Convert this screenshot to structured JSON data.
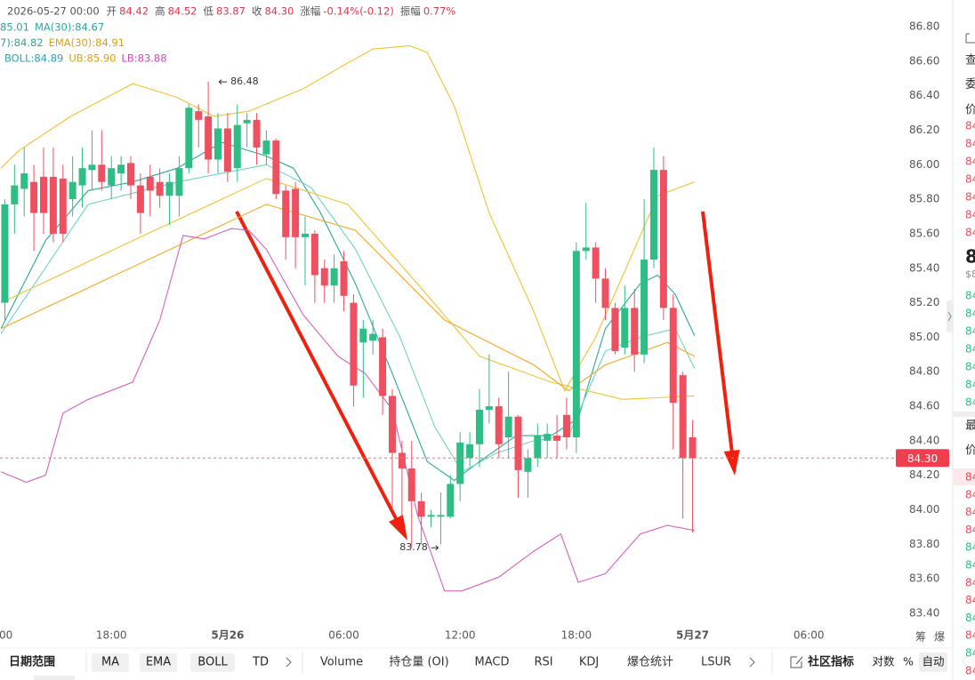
{
  "chart_data": {
    "type": "candlestick",
    "header": {
      "date": "2026-05-27 00:00",
      "items": [
        {
          "label": "开",
          "value": "84.42"
        },
        {
          "label": "高",
          "value": "84.52"
        },
        {
          "label": "低",
          "value": "83.87"
        },
        {
          "label": "收",
          "value": "84.30"
        },
        {
          "label": "涨幅",
          "value": "-0.14%(-0.12)"
        },
        {
          "label": "振幅",
          "value": "0.77%"
        }
      ]
    },
    "legend": [
      [
        {
          "text": "85.01",
          "color": "#2aa79b"
        },
        {
          "text": "MA(30):84.67",
          "color": "#2aa79b"
        }
      ],
      [
        {
          "text": "7):84.82",
          "color": "#2aa79b"
        },
        {
          "text": "EMA(30):84.91",
          "color": "#e0a000"
        }
      ],
      [
        {
          "text": "BOLL:84.89",
          "color": "#2a9fb5"
        },
        {
          "text": "UB:85.90",
          "color": "#e0a000"
        },
        {
          "text": "LB:83.88",
          "color": "#cc4bbb"
        }
      ]
    ],
    "up_color": "#2ebd85",
    "down_color": "#ef5060",
    "x": [
      0.5,
      1,
      1.5,
      2,
      2.5,
      3,
      3.5,
      4,
      4.5,
      5,
      5.5,
      6,
      6.5,
      7,
      7.5,
      8,
      8.5,
      9,
      9.5,
      10,
      10.5,
      11,
      11.5,
      12,
      12.5,
      13,
      13.5,
      14,
      14.5,
      15,
      15.5,
      16,
      16.5,
      17,
      17.5,
      18,
      18.5,
      19,
      19.5,
      20,
      20.5,
      21,
      21.5,
      22,
      22.5,
      23,
      23.5,
      24,
      24.5,
      25,
      25.5,
      26,
      26.5,
      27,
      27.5,
      28,
      28.5,
      29,
      29.5,
      30,
      30.5,
      31,
      31.5,
      32,
      32.5,
      33,
      33.5,
      34,
      34.5,
      35,
      35.5,
      36
    ],
    "open": [
      85.2,
      85.77,
      85.86,
      85.9,
      85.93,
      85.93,
      85.92,
      85.8,
      85.88,
      85.97,
      86.0,
      85.88,
      85.95,
      86.01,
      85.88,
      85.93,
      85.9,
      85.82,
      85.82,
      85.98,
      86.31,
      86.28,
      86.03,
      86.21,
      85.98,
      86.24,
      86.26,
      86.06,
      86.14,
      85.85,
      85.86,
      85.58,
      85.6,
      85.4,
      85.3,
      85.44,
      85.2,
      84.97,
      84.98,
      85.0,
      84.66,
      84.33,
      84.24,
      84.05,
      83.96,
      83.96,
      83.96,
      84.15,
      84.3,
      84.38,
      84.58,
      84.6,
      84.42,
      84.54,
      84.22,
      84.3,
      84.4,
      84.43,
      84.55,
      84.42,
      85.5,
      85.52,
      85.34,
      85.17,
      84.94,
      85.17,
      84.9,
      85.45,
      85.97,
      85.17,
      84.78,
      84.42
    ],
    "high": [
      85.8,
      86.0,
      86.1,
      86.0,
      86.1,
      86.1,
      86.0,
      86.05,
      86.1,
      86.2,
      86.2,
      86.05,
      86.05,
      86.05,
      85.95,
      86.0,
      85.98,
      85.95,
      86.05,
      86.35,
      86.35,
      86.48,
      86.3,
      86.3,
      86.35,
      86.3,
      86.3,
      86.2,
      86.15,
      85.88,
      85.9,
      85.7,
      85.62,
      85.45,
      85.48,
      85.5,
      85.25,
      85.1,
      85.1,
      85.05,
      84.7,
      84.4,
      84.4,
      84.1,
      84.0,
      84.1,
      84.2,
      84.45,
      84.45,
      84.7,
      84.9,
      84.65,
      84.8,
      84.55,
      84.35,
      84.5,
      84.5,
      84.55,
      84.65,
      85.55,
      85.78,
      85.55,
      85.4,
      85.2,
      85.3,
      85.28,
      85.8,
      86.1,
      86.05,
      85.25,
      84.8,
      84.52
    ],
    "low": [
      85.1,
      85.6,
      85.7,
      85.5,
      85.6,
      85.55,
      85.55,
      85.7,
      85.75,
      85.85,
      85.85,
      85.8,
      85.85,
      85.8,
      85.6,
      85.7,
      85.75,
      85.65,
      85.7,
      85.95,
      86.1,
      85.95,
      85.95,
      85.9,
      85.9,
      86.1,
      86.0,
      86.0,
      85.8,
      85.45,
      85.4,
      85.3,
      85.2,
      85.2,
      85.2,
      85.15,
      84.6,
      84.65,
      84.9,
      84.55,
      84.0,
      83.95,
      83.78,
      83.8,
      83.9,
      83.8,
      83.95,
      84.05,
      84.25,
      84.25,
      84.5,
      84.3,
      84.3,
      84.07,
      84.07,
      84.25,
      84.3,
      84.3,
      84.35,
      84.33,
      85.45,
      85.2,
      85.1,
      84.9,
      84.9,
      84.8,
      84.85,
      85.4,
      85.1,
      84.35,
      83.95,
      83.87
    ],
    "close": [
      85.77,
      85.88,
      85.95,
      85.72,
      85.72,
      85.6,
      85.6,
      85.9,
      85.98,
      86.0,
      85.9,
      85.98,
      86.0,
      85.88,
      85.72,
      85.85,
      85.82,
      85.9,
      85.98,
      86.33,
      86.26,
      86.03,
      86.21,
      85.96,
      86.23,
      86.26,
      86.1,
      86.14,
      85.83,
      85.58,
      85.58,
      85.6,
      85.36,
      85.3,
      85.4,
      85.24,
      84.72,
      85.05,
      85.02,
      84.66,
      84.33,
      84.24,
      84.05,
      83.96,
      83.97,
      83.97,
      84.15,
      84.39,
      84.38,
      84.58,
      84.6,
      84.38,
      84.54,
      84.23,
      84.3,
      84.43,
      84.44,
      84.4,
      84.42,
      85.5,
      85.52,
      85.34,
      85.17,
      84.92,
      85.17,
      84.9,
      85.45,
      85.97,
      85.17,
      84.62,
      84.3,
      84.3
    ],
    "series": [
      {
        "color": "#2aa79b",
        "x": [
          0.3,
          2.6,
          4.8,
          7.1,
          9.4,
          11.7,
          14.0,
          15.4,
          16.8,
          18.6,
          20.5,
          22.3,
          23.7,
          25.0,
          26.9,
          28.7,
          30.1,
          31.5,
          33.3,
          34.2,
          35.1,
          36.1
        ],
        "values": [
          85.05,
          85.56,
          85.85,
          85.9,
          85.98,
          86.13,
          86.05,
          85.98,
          85.72,
          85.31,
          84.79,
          84.28,
          84.17,
          84.28,
          84.43,
          84.43,
          84.53,
          85.05,
          85.31,
          85.36,
          85.25,
          85.01
        ]
      },
      {
        "color": "#6fd3c1",
        "x": [
          0.3,
          4.8,
          9.4,
          14.0,
          16.3,
          18.6,
          20.9,
          22.7,
          24.1,
          25.9,
          27.8,
          29.6,
          31.5,
          33.3,
          35.1,
          36.1
        ],
        "values": [
          85.02,
          85.77,
          85.9,
          86.0,
          85.87,
          85.51,
          85.0,
          84.48,
          84.22,
          84.33,
          84.4,
          84.43,
          84.92,
          85.0,
          85.05,
          84.82
        ]
      },
      {
        "color": "#f2c230",
        "x": [
          0.3,
          7.1,
          14.0,
          18.2,
          21.8,
          25.0,
          28.7,
          32.4,
          36.1
        ],
        "values": [
          85.2,
          85.56,
          85.92,
          85.77,
          85.31,
          84.89,
          84.74,
          84.64,
          84.66
        ]
      },
      {
        "color": "#f5a623",
        "x": [
          0.3,
          14.0,
          18.6,
          23.2,
          27.8,
          29.6,
          31.5,
          34.7,
          36.1
        ],
        "values": [
          85.05,
          85.77,
          85.62,
          85.1,
          84.84,
          84.69,
          84.84,
          84.97,
          84.89
        ]
      },
      {
        "color": "#f2c12e",
        "x": [
          0.3,
          1.2,
          3.9,
          7.1,
          9.4,
          11.3,
          13.1,
          15.9,
          18.2,
          19.5,
          21.4,
          22.3,
          23.7,
          25.5,
          27.8,
          29.4,
          31.0,
          32.8,
          34.2,
          36.1
        ],
        "values": [
          85.98,
          86.08,
          86.28,
          86.47,
          86.39,
          86.28,
          86.31,
          86.44,
          86.59,
          86.67,
          86.69,
          86.65,
          86.34,
          85.72,
          85.15,
          84.69,
          85.0,
          85.46,
          85.82,
          85.9
        ]
      },
      {
        "color": "#d65fc2",
        "x": [
          0.3,
          1.6,
          2.6,
          3.5,
          4.8,
          7.1,
          8.5,
          9.7,
          10.8,
          12.2,
          13.1,
          14.0,
          15.9,
          17.7,
          19.1,
          20.5,
          21.8,
          23.2,
          24.1,
          26.0,
          27.8,
          29.2,
          30.1,
          31.5,
          33.3,
          34.7,
          36.1
        ],
        "values": [
          84.22,
          84.16,
          84.2,
          84.56,
          84.64,
          84.74,
          85.1,
          85.59,
          85.57,
          85.63,
          85.62,
          85.51,
          85.13,
          84.89,
          84.79,
          84.58,
          83.97,
          83.53,
          83.53,
          83.61,
          83.76,
          83.86,
          83.58,
          83.63,
          83.86,
          83.91,
          83.88
        ]
      }
    ],
    "annotations": [
      {
        "x": 11,
        "value": 86.48,
        "side": "right"
      },
      {
        "x": 21.5,
        "value": 83.78,
        "side": "left"
      }
    ],
    "last_price": {
      "value": 84.3,
      "label": "84.30"
    },
    "xlim": [
      0.25,
      46.4
    ],
    "xticks": [
      {
        "value": 0,
        "label": "00"
      },
      {
        "value": 6,
        "label": "18:00"
      },
      {
        "value": 12,
        "label": "5月26"
      },
      {
        "value": 18,
        "label": "06:00"
      },
      {
        "value": 24,
        "label": "12:00"
      },
      {
        "value": 30,
        "label": "18:00"
      },
      {
        "value": 36,
        "label": "5月27"
      },
      {
        "value": 42,
        "label": "06:00"
      }
    ],
    "ylim": [
      83.4,
      86.8
    ],
    "yticks": [
      {
        "value": 83.4,
        "label": "83.40"
      },
      {
        "value": 83.6,
        "label": "83.60"
      },
      {
        "value": 83.8,
        "label": "83.80"
      },
      {
        "value": 84.0,
        "label": "84.00"
      },
      {
        "value": 84.2,
        "label": "84.20"
      },
      {
        "value": 84.4,
        "label": "84.40"
      },
      {
        "value": 84.6,
        "label": "84.60"
      },
      {
        "value": 84.8,
        "label": "84.80"
      },
      {
        "value": 85.0,
        "label": "85.00"
      },
      {
        "value": 85.2,
        "label": "85.20"
      },
      {
        "value": 85.4,
        "label": "85.40"
      },
      {
        "value": 85.6,
        "label": "85.60"
      },
      {
        "value": 85.8,
        "label": "85.80"
      },
      {
        "value": 86.0,
        "label": "86.00"
      },
      {
        "value": 86.2,
        "label": "86.20"
      },
      {
        "value": 86.4,
        "label": "86.40"
      },
      {
        "value": 86.6,
        "label": "86.60"
      },
      {
        "value": 86.8,
        "label": "86.80"
      }
    ],
    "grid": false,
    "axis_extra": [
      "筹",
      "爆"
    ],
    "toolbar": {
      "date_range": "日期范围",
      "main": [
        {
          "text": "MA",
          "active": true
        },
        {
          "text": "EMA",
          "active": true
        },
        {
          "text": "BOLL",
          "active": true
        },
        {
          "text": "TD",
          "active": false
        }
      ],
      "sub": [
        "Volume",
        "持仓量 (OI)",
        "MACD",
        "RSI",
        "KDJ",
        "爆仓统计",
        "LSUR"
      ],
      "community": "社区指标",
      "options": [
        {
          "text": "对数",
          "active": false
        },
        {
          "text": "%",
          "active": false
        },
        {
          "text": "自动",
          "active": true
        }
      ]
    },
    "side_panel": {
      "top": [
        "查",
        "委",
        "价"
      ],
      "asks": [
        "84",
        "84",
        "84",
        "84",
        "84",
        "84",
        "84"
      ],
      "last": "8",
      "last_sub": "$8",
      "bids": [
        "84",
        "84",
        "84",
        "84",
        "84",
        "84",
        "84"
      ],
      "trades_head": [
        "最",
        "价"
      ],
      "trades": [
        {
          "text": "84",
          "side": "sell"
        },
        {
          "text": "84",
          "side": "sell"
        },
        {
          "text": "84",
          "side": "sell"
        },
        {
          "text": "84",
          "side": "sell"
        },
        {
          "text": "84",
          "side": "buy"
        },
        {
          "text": "84",
          "side": "buy"
        },
        {
          "text": "84",
          "side": "sell"
        },
        {
          "text": "84",
          "side": "sell"
        },
        {
          "text": "84",
          "side": "buy"
        },
        {
          "text": "84",
          "side": "sell"
        },
        {
          "text": "84",
          "side": "buy"
        },
        {
          "text": "84",
          "side": "sell"
        }
      ]
    }
  }
}
